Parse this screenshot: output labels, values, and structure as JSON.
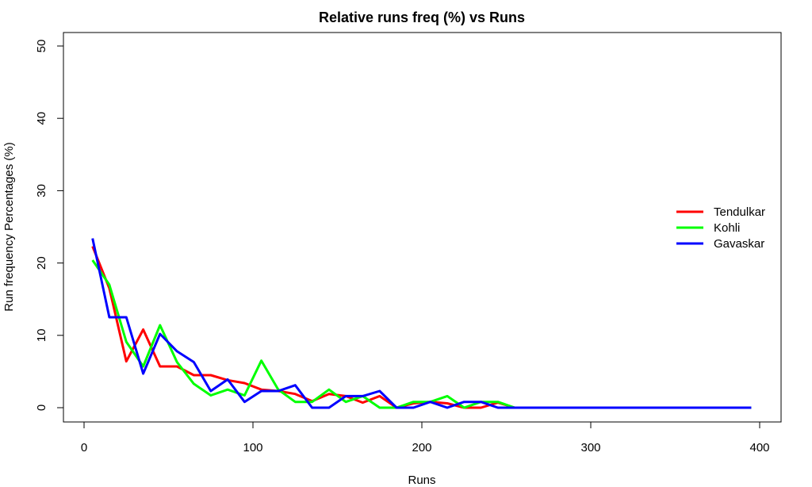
{
  "chart_data": {
    "type": "line",
    "title": "Relative runs freq (%) vs Runs",
    "xlabel": "Runs",
    "ylabel": "Run frequency Percentages (%)",
    "xlim": [
      0,
      400
    ],
    "ylim": [
      0,
      50
    ],
    "x_ticks": [
      0,
      100,
      200,
      300,
      400
    ],
    "y_ticks": [
      0,
      10,
      20,
      30,
      40,
      50
    ],
    "grid": false,
    "legend_position": "right",
    "x": [
      5,
      15,
      25,
      35,
      45,
      55,
      65,
      75,
      85,
      95,
      105,
      115,
      125,
      135,
      145,
      155,
      165,
      175,
      185,
      195,
      205,
      215,
      225,
      235,
      245,
      255,
      265,
      275,
      285,
      295,
      305,
      315,
      325,
      335,
      345,
      355,
      365,
      375,
      385,
      395
    ],
    "series": [
      {
        "name": "Tendulkar",
        "color": "#ff0000",
        "values": [
          22.3,
          16.5,
          6.4,
          10.8,
          5.7,
          5.7,
          4.5,
          4.5,
          3.8,
          3.4,
          2.5,
          2.3,
          1.9,
          0.9,
          1.9,
          1.6,
          0.7,
          1.6,
          0,
          0.6,
          0.8,
          0.6,
          0,
          0,
          0.7,
          0,
          0,
          0,
          0,
          0,
          0,
          0,
          0,
          0,
          0,
          0,
          0,
          0,
          0,
          0
        ]
      },
      {
        "name": "Kohli",
        "color": "#00ff00",
        "values": [
          20.4,
          17.0,
          9.1,
          5.7,
          11.4,
          6.3,
          3.3,
          1.7,
          2.5,
          1.7,
          6.5,
          2.5,
          0.8,
          0.8,
          2.5,
          0.8,
          1.6,
          0,
          0,
          0.8,
          0.8,
          1.6,
          0,
          0.8,
          0.8,
          0,
          0,
          0,
          0,
          0,
          0,
          0,
          0,
          0,
          0,
          0,
          0,
          0,
          0,
          0
        ]
      },
      {
        "name": "Gavaskar",
        "color": "#0000ff",
        "values": [
          23.4,
          12.5,
          12.5,
          4.7,
          10.2,
          7.8,
          6.3,
          2.3,
          3.9,
          0.8,
          2.3,
          2.3,
          3.1,
          0,
          0,
          1.6,
          1.6,
          2.3,
          0,
          0,
          0.8,
          0,
          0.8,
          0.8,
          0,
          0,
          0,
          0,
          0,
          0,
          0,
          0,
          0,
          0,
          0,
          0,
          0,
          0,
          0,
          0
        ]
      }
    ]
  }
}
